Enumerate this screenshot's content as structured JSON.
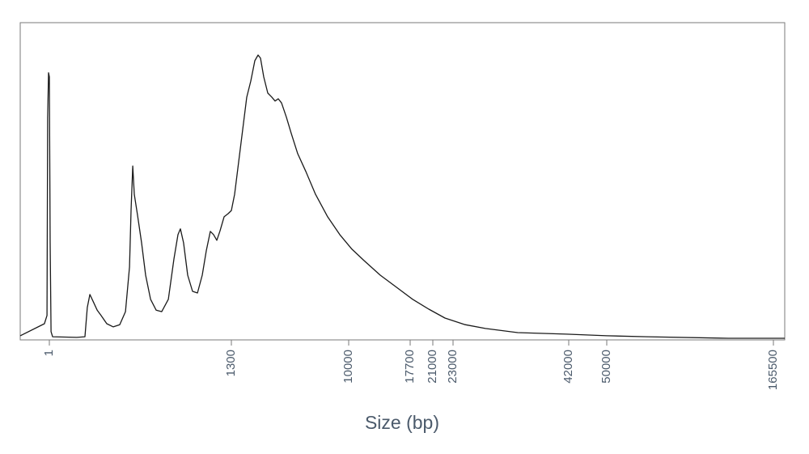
{
  "chart_data": {
    "type": "line",
    "xlabel": "Size (bp)",
    "color": "#1a1a1a",
    "x": [
      -207,
      -34,
      -16,
      -11,
      -5,
      1,
      7,
      13,
      24,
      197,
      255,
      272,
      290,
      313,
      342,
      370,
      411,
      457,
      503,
      544,
      573,
      584,
      596,
      607,
      630,
      659,
      688,
      723,
      763,
      803,
      850,
      890,
      919,
      936,
      959,
      988,
      1023,
      1058,
      1092,
      1121,
      1150,
      1173,
      1196,
      1219,
      1248,
      1277,
      1300,
      1540,
      1840,
      2140,
      2440,
      2740,
      3040,
      3280,
      3460,
      3700,
      4000,
      4300,
      4540,
      4780,
      5020,
      5380,
      5740,
      6220,
      6820,
      7540,
      8440,
      9340,
      10405,
      11925,
      13951,
      15978,
      18054,
      20411,
      22200,
      24993,
      28315,
      33630,
      41601,
      50000,
      78035,
      134105,
      173354
    ],
    "values": [
      1.3,
      5.1,
      7.7,
      69.9,
      84.2,
      82.9,
      30.6,
      2.6,
      1.0,
      0.8,
      1.0,
      10.2,
      14.3,
      12.2,
      9.4,
      7.7,
      5.1,
      4.1,
      4.8,
      8.9,
      23.0,
      40.8,
      54.8,
      45.9,
      39.5,
      30.6,
      20.4,
      12.8,
      9.4,
      8.9,
      12.8,
      25.5,
      33.2,
      35.0,
      30.6,
      20.4,
      15.3,
      14.8,
      20.4,
      28.1,
      34.2,
      33.2,
      31.4,
      34.4,
      38.8,
      39.8,
      40.8,
      45.9,
      56.1,
      66.3,
      76.5,
      81.6,
      88.0,
      89.8,
      88.8,
      82.9,
      77.8,
      76.5,
      75.3,
      76.0,
      74.7,
      70.2,
      65.1,
      58.7,
      53.1,
      45.9,
      38.8,
      33.2,
      28.6,
      25.0,
      20.4,
      16.6,
      12.8,
      9.7,
      6.9,
      4.8,
      3.6,
      2.3,
      1.8,
      1.3,
      1.0,
      0.5,
      0.5
    ],
    "xlim": [
      -207,
      173354
    ],
    "xticks": [
      1,
      1300,
      10000,
      17700,
      21000,
      23000,
      42000,
      50000,
      165500
    ],
    "ylim": [
      0,
      100
    ]
  }
}
